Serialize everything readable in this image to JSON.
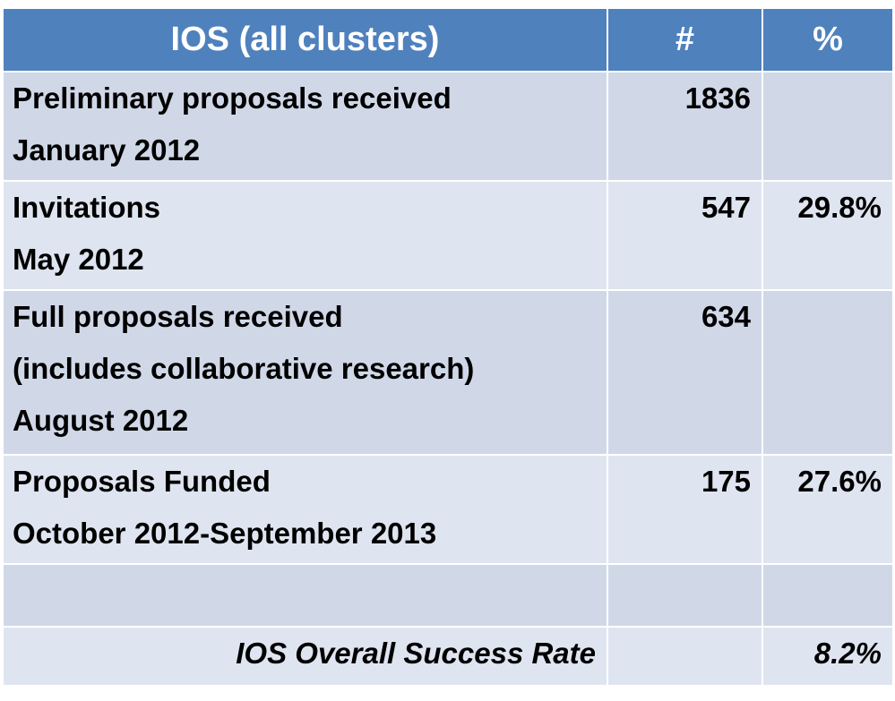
{
  "table": {
    "header": {
      "title": "IOS (all clusters)",
      "count": "#",
      "percent": "%"
    },
    "rows": [
      {
        "label_lines": [
          "Preliminary proposals received",
          "January 2012"
        ],
        "count": "1836",
        "percent": ""
      },
      {
        "label_lines": [
          "Invitations",
          "May 2012"
        ],
        "count": "547",
        "percent": "29.8%"
      },
      {
        "label_lines": [
          "Full proposals received",
          "(includes collaborative research)",
          "August 2012"
        ],
        "count": "634",
        "percent": ""
      },
      {
        "label_lines": [
          "Proposals Funded",
          "October 2012-September 2013"
        ],
        "count": "175",
        "percent": "27.6%"
      }
    ],
    "summary": {
      "label": "IOS Overall Success Rate",
      "percent": "8.2%"
    },
    "colors": {
      "header_bg": "#4f81bd",
      "row_bg": "#d0d8e8",
      "row_bg_alt": "#dfe5f0",
      "summary_label": "#1f4e8c"
    }
  }
}
